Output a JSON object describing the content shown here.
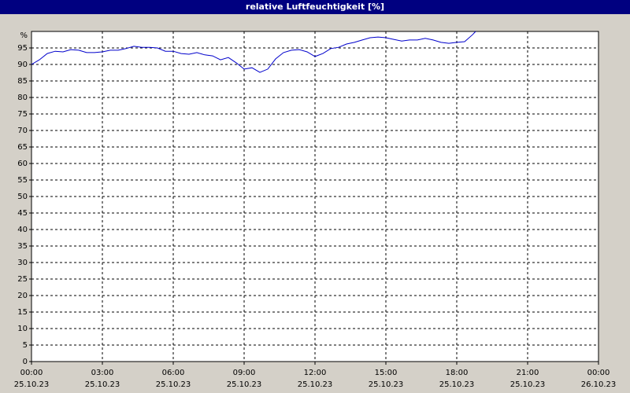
{
  "chart_data": {
    "type": "line",
    "title": "relative Luftfeuchtigkeit [%]",
    "y_unit_label": "%",
    "x": [
      "2023-10-25T00:00",
      "2023-10-25T00:20",
      "2023-10-25T00:40",
      "2023-10-25T01:00",
      "2023-10-25T01:20",
      "2023-10-25T01:40",
      "2023-10-25T02:00",
      "2023-10-25T02:20",
      "2023-10-25T02:40",
      "2023-10-25T03:00",
      "2023-10-25T03:20",
      "2023-10-25T03:40",
      "2023-10-25T04:00",
      "2023-10-25T04:20",
      "2023-10-25T04:40",
      "2023-10-25T05:00",
      "2023-10-25T05:20",
      "2023-10-25T05:40",
      "2023-10-25T06:00",
      "2023-10-25T06:20",
      "2023-10-25T06:40",
      "2023-10-25T07:00",
      "2023-10-25T07:20",
      "2023-10-25T07:40",
      "2023-10-25T08:00",
      "2023-10-25T08:20",
      "2023-10-25T08:40",
      "2023-10-25T09:00",
      "2023-10-25T09:20",
      "2023-10-25T09:40",
      "2023-10-25T10:00",
      "2023-10-25T10:20",
      "2023-10-25T10:40",
      "2023-10-25T11:00",
      "2023-10-25T11:20",
      "2023-10-25T11:40",
      "2023-10-25T12:00",
      "2023-10-25T12:20",
      "2023-10-25T12:40",
      "2023-10-25T13:00",
      "2023-10-25T13:20",
      "2023-10-25T13:40",
      "2023-10-25T14:00",
      "2023-10-25T14:20",
      "2023-10-25T14:40",
      "2023-10-25T15:00",
      "2023-10-25T15:20",
      "2023-10-25T15:40",
      "2023-10-25T16:00",
      "2023-10-25T16:20",
      "2023-10-25T16:40",
      "2023-10-25T17:00",
      "2023-10-25T17:20",
      "2023-10-25T17:40",
      "2023-10-25T18:00",
      "2023-10-25T18:20",
      "2023-10-25T18:40",
      "2023-10-25T18:48"
    ],
    "series": [
      {
        "color": "#0000cc",
        "values": [
          90.0,
          91.4,
          93.3,
          94.0,
          93.8,
          94.5,
          94.3,
          93.6,
          93.6,
          93.8,
          94.3,
          94.3,
          94.8,
          95.5,
          95.2,
          95.2,
          95.0,
          94.0,
          94.0,
          93.3,
          93.1,
          93.6,
          92.9,
          92.6,
          91.4,
          92.1,
          90.5,
          88.6,
          89.0,
          87.6,
          88.6,
          91.7,
          93.6,
          94.3,
          94.5,
          93.8,
          92.4,
          93.3,
          94.8,
          95.2,
          96.2,
          96.7,
          97.4,
          98.1,
          98.3,
          98.1,
          97.6,
          97.1,
          97.4,
          97.4,
          97.9,
          97.4,
          96.7,
          96.4,
          96.7,
          96.9,
          99.0,
          100
        ]
      }
    ],
    "xlim": [
      "2023-10-25T00:00",
      "2023-10-26T00:00"
    ],
    "xticks": [
      {
        "value": "2023-10-25T00:00",
        "label": [
          "00:00",
          "25.10.23"
        ]
      },
      {
        "value": "2023-10-25T03:00",
        "label": [
          "03:00",
          "25.10.23"
        ]
      },
      {
        "value": "2023-10-25T06:00",
        "label": [
          "06:00",
          "25.10.23"
        ]
      },
      {
        "value": "2023-10-25T09:00",
        "label": [
          "09:00",
          "25.10.23"
        ]
      },
      {
        "value": "2023-10-25T12:00",
        "label": [
          "12:00",
          "25.10.23"
        ]
      },
      {
        "value": "2023-10-25T15:00",
        "label": [
          "15:00",
          "25.10.23"
        ]
      },
      {
        "value": "2023-10-25T18:00",
        "label": [
          "18:00",
          "25.10.23"
        ]
      },
      {
        "value": "2023-10-25T21:00",
        "label": [
          "21:00",
          "25.10.23"
        ]
      },
      {
        "value": "2023-10-26T00:00",
        "label": [
          "00:00",
          "26.10.23"
        ]
      }
    ],
    "ylim": [
      0,
      100
    ],
    "yticks": [
      0,
      5,
      10,
      15,
      20,
      25,
      30,
      35,
      40,
      45,
      50,
      55,
      60,
      65,
      70,
      75,
      80,
      85,
      90,
      95
    ],
    "grid": true
  }
}
